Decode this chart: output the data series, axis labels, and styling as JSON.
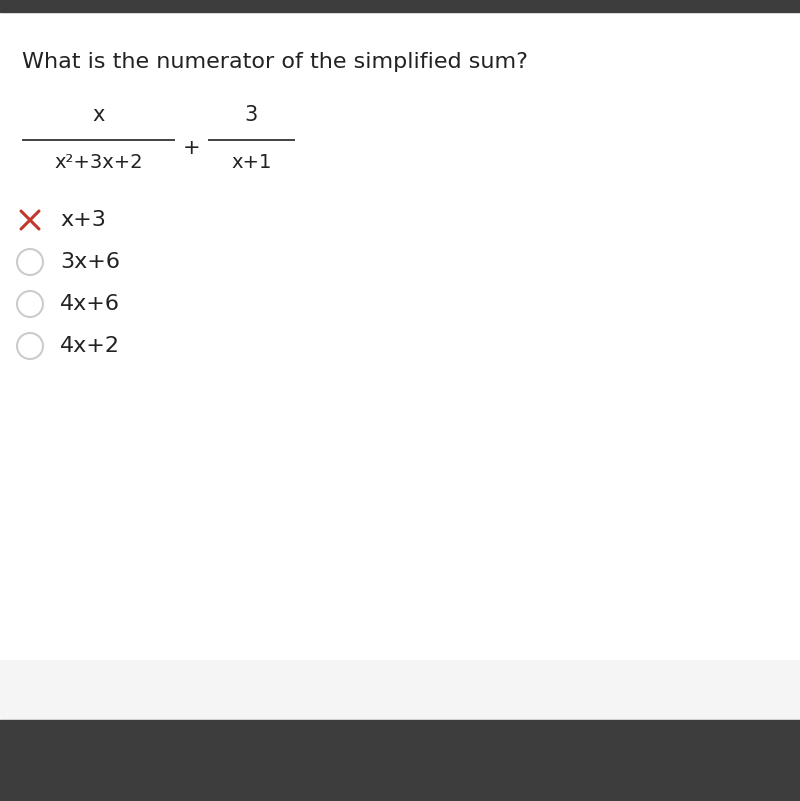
{
  "background_color": "#ffffff",
  "top_bar_color": "#3d3d3d",
  "bottom_bar_color": "#3d3d3d",
  "bottom_light_color": "#f5f5f5",
  "question": "What is the numerator of the simplified sum?",
  "question_fontsize": 16,
  "fraction1_numerator": "x",
  "fraction1_denominator": "x²+3x+2",
  "fraction2_numerator": "3",
  "fraction2_denominator": "x+1",
  "options": [
    "x+3",
    "3x+6",
    "4x+6",
    "4x+2"
  ],
  "option_markers": [
    "cross",
    "circle",
    "circle",
    "circle"
  ],
  "cross_color": "#c0392b",
  "circle_color": "#cccccc",
  "option_fontsize": 16,
  "text_color": "#222222"
}
